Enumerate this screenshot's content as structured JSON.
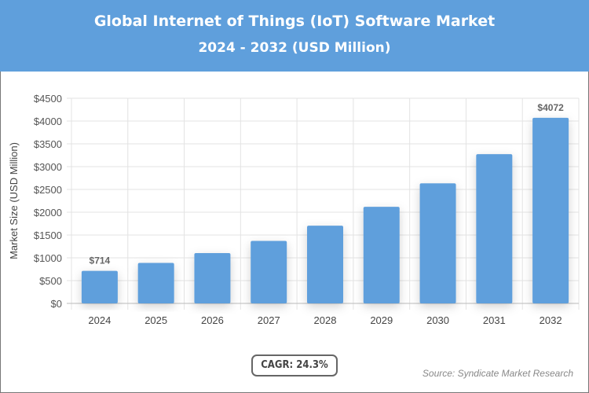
{
  "header": {
    "title": "Global Internet of Things (IoT) Software Market",
    "subtitle": "2024 - 2032 (USD Million)",
    "background": "#5f9fdc"
  },
  "chart_data": {
    "type": "bar",
    "title": "Global Internet of Things (IoT) Software Market",
    "subtitle": "2024 - 2032 (USD Million)",
    "categories": [
      "2024",
      "2025",
      "2026",
      "2027",
      "2028",
      "2029",
      "2030",
      "2031",
      "2032"
    ],
    "values": [
      714,
      888,
      1103,
      1371,
      1705,
      2119,
      2634,
      3274,
      4072
    ],
    "data_labels": {
      "0": "$714",
      "8": "$4072"
    },
    "ylabel": "Market Size (USD Million)",
    "xlabel": "",
    "ylim": [
      0,
      4500
    ],
    "yticks": [
      0,
      500,
      1000,
      1500,
      2000,
      2500,
      3000,
      3500,
      4000,
      4500
    ],
    "ytick_prefix": "$",
    "grid": true,
    "bar_color": "#5f9fdc"
  },
  "cagr": "CAGR: 24.3%",
  "source": "Source: Syndicate Market Research"
}
